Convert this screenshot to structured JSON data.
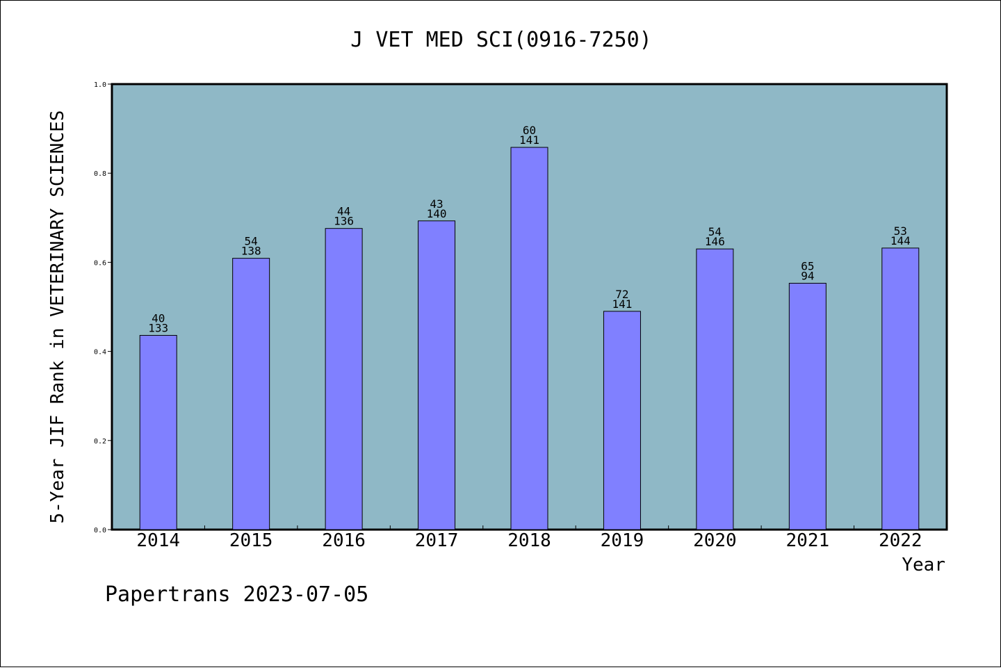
{
  "chart_data": {
    "type": "bar",
    "title": "J VET MED SCI(0916-7250)",
    "xlabel": "Year",
    "ylabel": "5-Year JIF Rank in VETERINARY SCIENCES",
    "footer": "Papertrans 2023-07-05",
    "categories": [
      "2014",
      "2015",
      "2016",
      "2017",
      "2018",
      "2019",
      "2020",
      "2021",
      "2022"
    ],
    "values": [
      0.436,
      0.609,
      0.676,
      0.693,
      0.858,
      0.49,
      0.63,
      0.553,
      0.632
    ],
    "rank_labels": [
      "40",
      "54",
      "44",
      "43",
      "60",
      "72",
      "54",
      "65",
      "53"
    ],
    "total_labels": [
      "133",
      "138",
      "136",
      "140",
      "141",
      "141",
      "146",
      "94",
      "144"
    ],
    "ylim": [
      0,
      1.0
    ],
    "yticks": [
      "0.0",
      "0.2",
      "0.4",
      "0.6",
      "0.8",
      "1.0"
    ],
    "grid": false,
    "colors": {
      "plot_background": "#8fb8c6",
      "bar_fill": "#8080ff",
      "bar_stroke": "#000000"
    }
  }
}
